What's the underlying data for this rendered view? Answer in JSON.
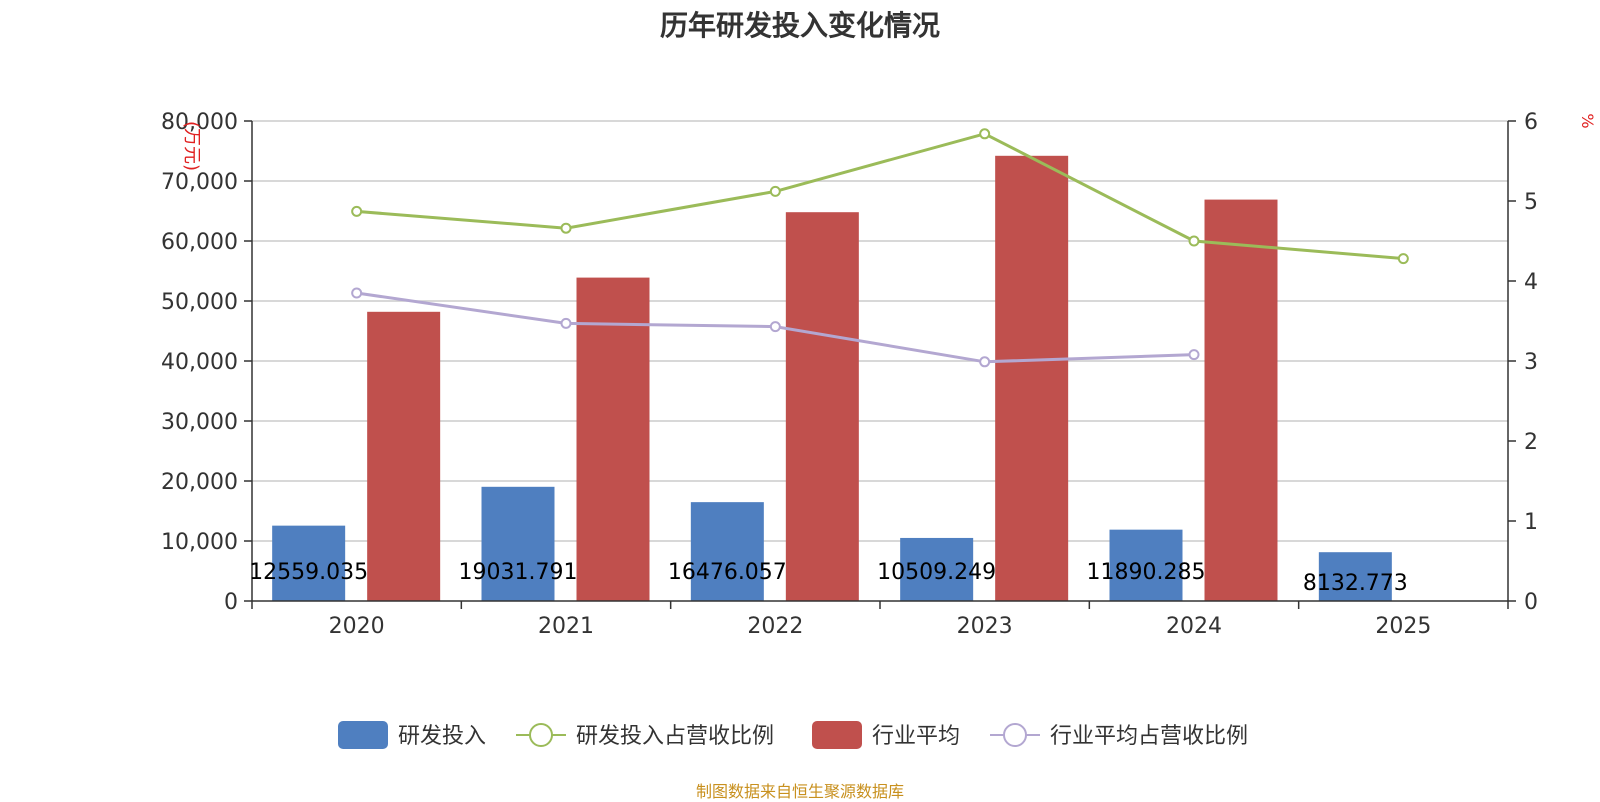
{
  "chart_data": {
    "type": "bar",
    "title": "历年研发投入变化情况",
    "categories": [
      "2020",
      "2021",
      "2022",
      "2023",
      "2024",
      "2025"
    ],
    "y_left": {
      "label": "(万元)",
      "ylim": [
        0,
        80000
      ],
      "ticks": [
        "0",
        "10,000",
        "20,000",
        "30,000",
        "40,000",
        "50,000",
        "60,000",
        "70,000",
        "80,000"
      ],
      "tick_values": [
        0,
        10000,
        20000,
        30000,
        40000,
        50000,
        60000,
        70000,
        80000
      ]
    },
    "y_right": {
      "label": "%",
      "ylim": [
        0,
        6
      ],
      "ticks": [
        "0",
        "1",
        "2",
        "3",
        "4",
        "5",
        "6"
      ],
      "tick_values": [
        0,
        1,
        2,
        3,
        4,
        5,
        6
      ]
    },
    "grid": true,
    "legend_position": "bottom",
    "series": [
      {
        "name": "研发投入",
        "type": "bar",
        "axis": "left",
        "color": "#4f7fc0",
        "values": [
          12559.035,
          19031.791,
          16476.057,
          10509.249,
          11890.285,
          8132.773
        ],
        "labels": [
          "12559.035",
          "19031.791",
          "16476.057",
          "10509.249",
          "11890.285",
          "8132.773"
        ]
      },
      {
        "name": "研发投入占营收比例",
        "type": "line",
        "axis": "right",
        "color": "#9bbb59",
        "values": [
          4.87,
          4.66,
          5.12,
          5.84,
          4.5,
          4.28
        ]
      },
      {
        "name": "行业平均",
        "type": "bar",
        "axis": "left",
        "color": "#c0504d",
        "values": [
          48200,
          53900,
          64800,
          74200,
          66900,
          null
        ]
      },
      {
        "name": "行业平均占营收比例",
        "type": "line",
        "axis": "right",
        "color": "#b3a7d1",
        "values": [
          3.85,
          3.47,
          3.43,
          2.99,
          3.08,
          null
        ]
      }
    ]
  },
  "source": "制图数据来自恒生聚源数据库"
}
